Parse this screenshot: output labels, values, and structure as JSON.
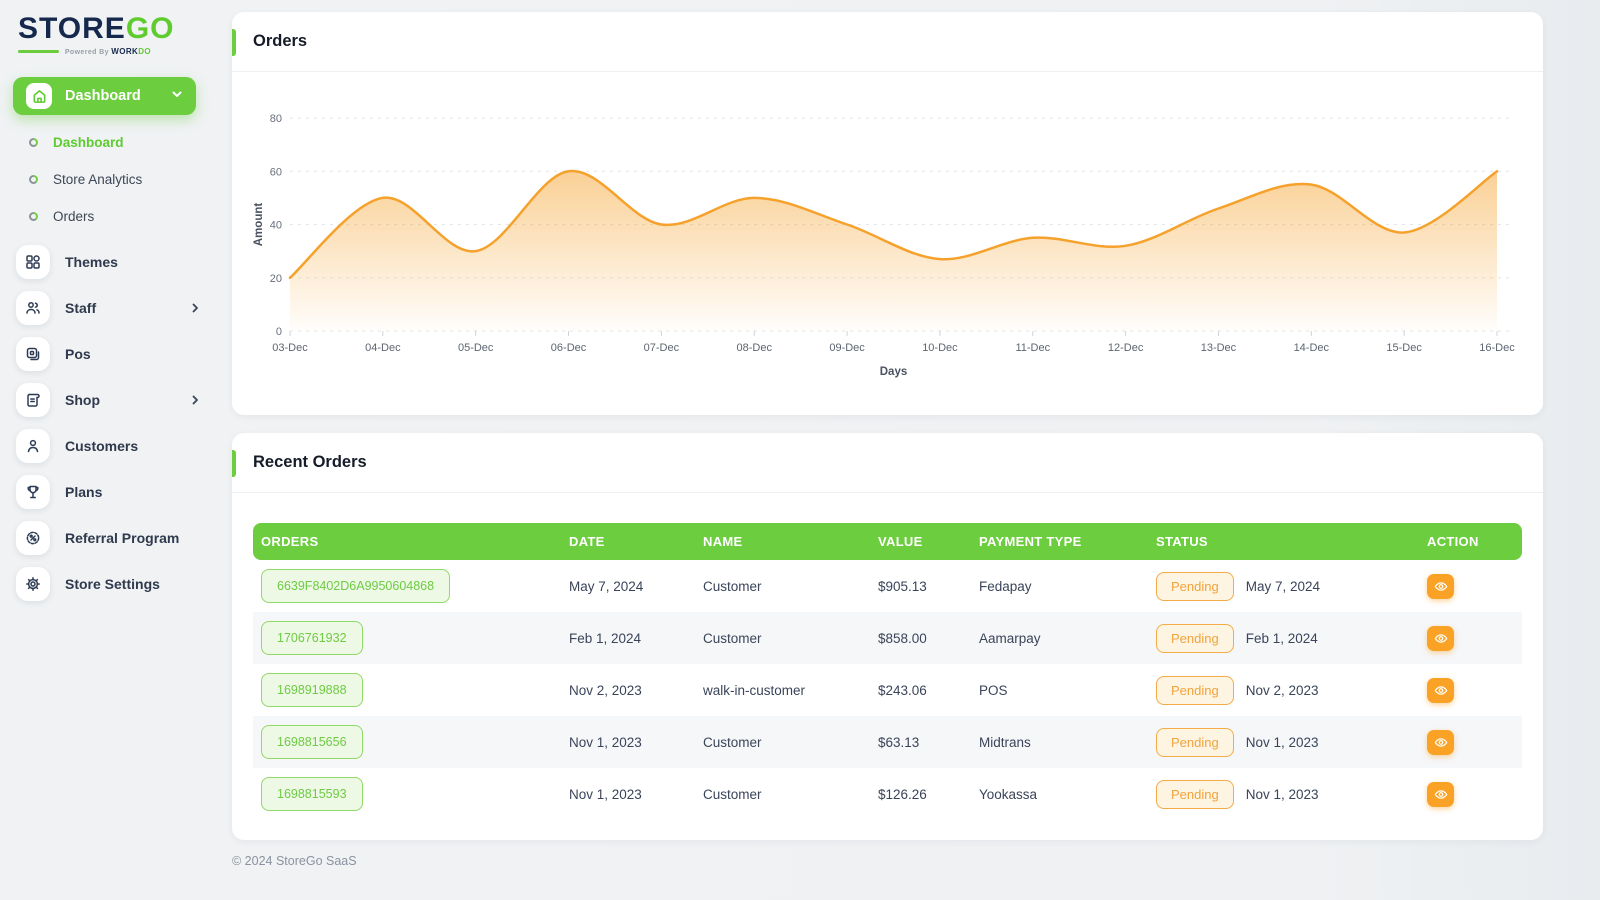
{
  "brand": {
    "name_primary": "STORE",
    "name_secondary": "GO",
    "powered_prefix": "Powered By ",
    "powered_brand_primary": "WORK",
    "powered_brand_secondary": "DO"
  },
  "sidebar": {
    "group_label": "Dashboard",
    "sub_items": [
      {
        "label": "Dashboard",
        "active": true
      },
      {
        "label": "Store Analytics",
        "active": false
      },
      {
        "label": "Orders",
        "active": false
      }
    ],
    "items": [
      {
        "label": "Themes",
        "has_chevron": false
      },
      {
        "label": "Staff",
        "has_chevron": true
      },
      {
        "label": "Pos",
        "has_chevron": false
      },
      {
        "label": "Shop",
        "has_chevron": true
      },
      {
        "label": "Customers",
        "has_chevron": false
      },
      {
        "label": "Plans",
        "has_chevron": false
      },
      {
        "label": "Referral Program",
        "has_chevron": false
      },
      {
        "label": "Store Settings",
        "has_chevron": false
      }
    ]
  },
  "orders_card": {
    "title": "Orders"
  },
  "chart_data": {
    "type": "area",
    "x": [
      "03-Dec",
      "04-Dec",
      "05-Dec",
      "06-Dec",
      "07-Dec",
      "08-Dec",
      "09-Dec",
      "10-Dec",
      "11-Dec",
      "12-Dec",
      "13-Dec",
      "14-Dec",
      "15-Dec",
      "16-Dec"
    ],
    "series": [
      {
        "name": "Amount",
        "values": [
          20,
          50,
          30,
          60,
          40,
          50,
          40,
          27,
          35,
          32,
          46,
          55,
          37,
          60
        ]
      }
    ],
    "xlabel": "Days",
    "ylabel": "Amount",
    "ylim": [
      0,
      80
    ],
    "yticks": [
      0,
      20,
      40,
      60,
      80
    ],
    "grid": true,
    "legend": "none",
    "line_color": "#f5a12b",
    "fill_color": "#f5a12b"
  },
  "recent_orders": {
    "title": "Recent Orders",
    "columns": [
      "ORDERS",
      "DATE",
      "NAME",
      "VALUE",
      "PAYMENT TYPE",
      "STATUS",
      "ACTION"
    ],
    "rows": [
      {
        "order_id": "6639F8402D6A9950604868",
        "date": "May 7, 2024",
        "name": "Customer",
        "value": "$905.13",
        "payment_type": "Fedapay",
        "status": "Pending",
        "status_date": "May 7, 2024"
      },
      {
        "order_id": "1706761932",
        "date": "Feb 1, 2024",
        "name": "Customer",
        "value": "$858.00",
        "payment_type": "Aamarpay",
        "status": "Pending",
        "status_date": "Feb 1, 2024"
      },
      {
        "order_id": "1698919888",
        "date": "Nov 2, 2023",
        "name": "walk-in-customer",
        "value": "$243.06",
        "payment_type": "POS",
        "status": "Pending",
        "status_date": "Nov 2, 2023"
      },
      {
        "order_id": "1698815656",
        "date": "Nov 1, 2023",
        "name": "Customer",
        "value": "$63.13",
        "payment_type": "Midtrans",
        "status": "Pending",
        "status_date": "Nov 1, 2023"
      },
      {
        "order_id": "1698815593",
        "date": "Nov 1, 2023",
        "name": "Customer",
        "value": "$126.26",
        "payment_type": "Yookassa",
        "status": "Pending",
        "status_date": "Nov 1, 2023"
      }
    ]
  },
  "footer": {
    "copyright": "© 2024 StoreGo SaaS"
  },
  "colors": {
    "brand_green": "#6ccd3e",
    "brand_navy": "#16294d",
    "accent_orange": "#f9a225",
    "badge_orange_text": "#f2a33c",
    "chip_green_text": "#6ecb43",
    "chart_line": "#f5a12b"
  }
}
